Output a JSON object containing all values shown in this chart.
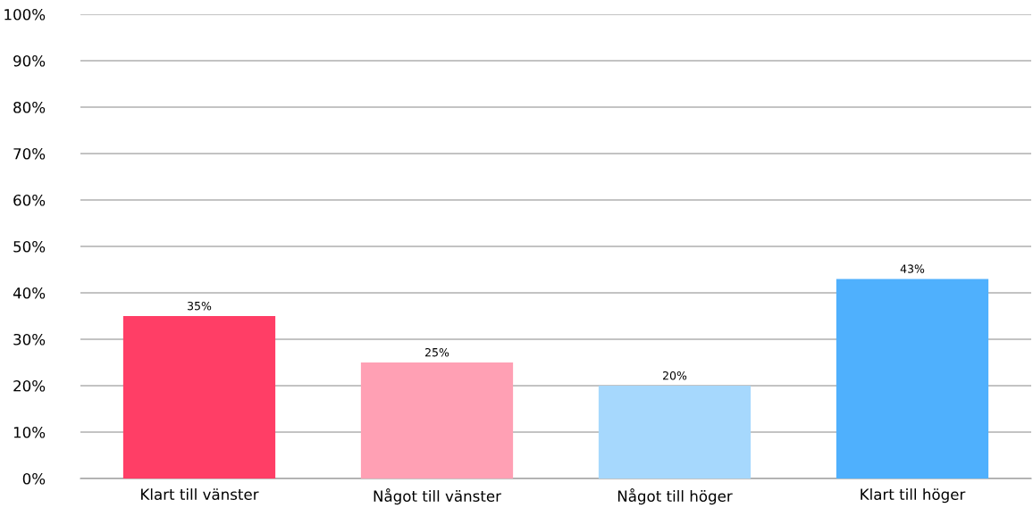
{
  "chart_data": {
    "type": "bar",
    "categories": [
      "Klart till vänster",
      "Något till vänster",
      "Något till höger",
      "Klart till höger"
    ],
    "values": [
      35,
      25,
      20,
      43
    ],
    "colors": [
      "#ff3e66",
      "#ffa0b4",
      "#a6d8fd",
      "#4fb0fd"
    ],
    "value_labels": [
      "35%",
      "25%",
      "20%",
      "43%"
    ],
    "ylim": [
      0,
      100
    ],
    "yticks": [
      {
        "value": 0,
        "label": "0%"
      },
      {
        "value": 10,
        "label": "10%"
      },
      {
        "value": 20,
        "label": "20%"
      },
      {
        "value": 30,
        "label": "30%"
      },
      {
        "value": 40,
        "label": "40%"
      },
      {
        "value": 50,
        "label": "50%"
      },
      {
        "value": 60,
        "label": "60%"
      },
      {
        "value": 70,
        "label": "70%"
      },
      {
        "value": 80,
        "label": "80%"
      },
      {
        "value": 90,
        "label": "90%"
      },
      {
        "value": 100,
        "label": "100%"
      }
    ],
    "grid": "y",
    "legend": false
  }
}
